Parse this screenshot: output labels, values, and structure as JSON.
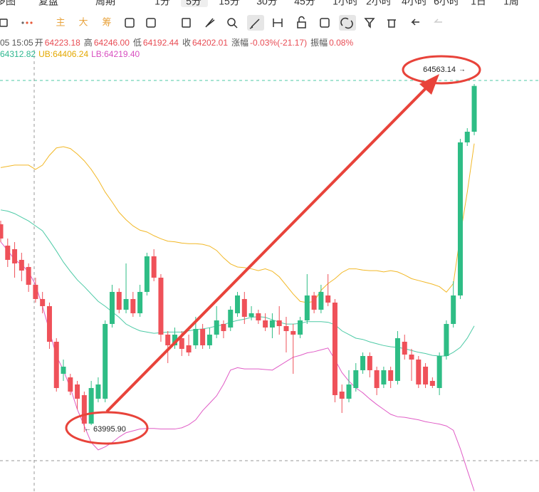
{
  "periods": [
    "多图",
    "复盘",
    "周期",
    "1分",
    "5分",
    "15分",
    "30分",
    "45分",
    "1小时",
    "2小时",
    "4小时",
    "6小时",
    "1日",
    "1周"
  ],
  "indicator_buttons": [
    "主",
    "大",
    "筹"
  ],
  "info": [
    "05 15:05",
    "开",
    "64223.18",
    "高",
    "64246.00",
    "低",
    "64192.44",
    "收",
    "64202.01",
    "涨幅",
    "-0.03%(-21.17)",
    "振幅",
    "0.08%"
  ],
  "indicator_values": [
    "64312.82",
    "UB:64406.24",
    "LB:64219.40"
  ],
  "chart_data": {
    "type": "candlestick",
    "categories": [
      null,
      null,
      null,
      null,
      null,
      null,
      null,
      null,
      null,
      null,
      null,
      null,
      null,
      null,
      null,
      null,
      null,
      null,
      null,
      null,
      null,
      null,
      null,
      null,
      null,
      null,
      null,
      null,
      null,
      null,
      null,
      null,
      null,
      null,
      null,
      null,
      null,
      null,
      null,
      null,
      null,
      null,
      null,
      null,
      null,
      null,
      null,
      null,
      null,
      null,
      null,
      null,
      null,
      null,
      null,
      null,
      null,
      null,
      null,
      null,
      null,
      null,
      null,
      null,
      null,
      null,
      null,
      null,
      null
    ],
    "open": [
      64334.6,
      64299.8,
      64294,
      64276.6,
      64265,
      64236,
      64212.8,
      64201.2,
      64143.2,
      64091,
      64085.2,
      64073.6,
      64056.2,
      64009.8,
      64050.4,
      64050.4,
      64172.2,
      64224.4,
      64195.4,
      64212.8,
      64189.6,
      64224.4,
      64282.4,
      64247.6,
      64154.8,
      64137.4,
      64149,
      64137.4,
      64137.4,
      64164.1,
      64137.4,
      64154.8,
      64172.2,
      64166.4,
      64189.6,
      64212.8,
      64183.8,
      64189.6,
      64178,
      64166.4,
      64178,
      64168.7,
      64160.6,
      64154.8,
      64178,
      64218.6,
      64195.4,
      64218.6,
      64207,
      64062,
      64050.4,
      64067.8,
      64096.8,
      64120,
      64096.8,
      64073.6,
      64096.8,
      64079.4,
      64143.2,
      64122.3,
      64114.2,
      64102.6,
      64079.4,
      64067.8,
      64120,
      64172.2,
      64218.6,
      64468,
      64485.4
    ],
    "high": [
      64340.4,
      64311.4,
      64305.6,
      64288.2,
      64270.8,
      64247.6,
      64224.4,
      64207,
      64149,
      64114.2,
      64091,
      64079.4,
      64062,
      64079.4,
      64085.2,
      64178,
      64236,
      64230.2,
      64270.8,
      64224.4,
      64236,
      64288.2,
      64294,
      64253.4,
      64160.6,
      64166.4,
      64160.6,
      64154.8,
      64183.8,
      64172.2,
      64166.4,
      64201.2,
      64178,
      64201.2,
      64224.4,
      64224.4,
      64201.2,
      64195.4,
      64189.6,
      64189.6,
      64201.2,
      64183.8,
      64172.2,
      64183.8,
      64253.4,
      64224.4,
      64236,
      64253.4,
      64212.8,
      64073.6,
      64096.8,
      64108.4,
      64125.8,
      64125.8,
      64102.6,
      64102.6,
      64102.6,
      64160.6,
      64154.8,
      64131.6,
      64120,
      64108.4,
      64085.2,
      64125.8,
      64178,
      64241.8,
      64473.8,
      64491.2,
      64563.14
    ],
    "low": [
      64305.6,
      64265,
      64247.6,
      64241.8,
      64224.4,
      64207,
      64189.6,
      64131.6,
      64062,
      64079.4,
      64056.2,
      64033,
      63995.9,
      64007.5,
      64044.6,
      64044.6,
      64166.4,
      64189.6,
      64189.6,
      64183.8,
      64183.8,
      64218.6,
      64241.8,
      64143.2,
      64108.4,
      64131.6,
      64120,
      64120,
      64131.6,
      64131.6,
      64131.6,
      64149,
      64149,
      64160.6,
      64183.8,
      64172.2,
      64178,
      64172.2,
      64160.6,
      64149,
      64154.8,
      64125.8,
      64091,
      64149,
      64172.2,
      64189.6,
      64189.6,
      64201.2,
      64044.6,
      64027.2,
      64044.6,
      64062,
      64091,
      64085.2,
      64056.2,
      64067.8,
      64067.8,
      64073.6,
      64114.2,
      64079.4,
      64067.8,
      64067.8,
      64067.8,
      64056.2,
      64114.2,
      64166.4,
      64212.8,
      64462.2,
      64479.6
    ],
    "close": [
      64311.4,
      64276.6,
      64270.8,
      64259.2,
      64236,
      64212.8,
      64201.2,
      64143.2,
      64067.8,
      64102.6,
      64062,
      64050.4,
      64009.8,
      64067.8,
      64073.6,
      64172.2,
      64224.4,
      64195.4,
      64212.8,
      64189.6,
      64224.4,
      64282.4,
      64247.6,
      64154.8,
      64137.4,
      64154.8,
      64131.6,
      64125.8,
      64164.1,
      64137.4,
      64154.8,
      64178,
      64160.6,
      64195.4,
      64218.6,
      64183.8,
      64189.6,
      64178,
      64166.4,
      64178,
      64168.7,
      64160.6,
      64154.8,
      64178,
      64218.6,
      64195.4,
      64224.4,
      64207,
      64056.2,
      64050.4,
      64073.6,
      64096.8,
      64120,
      64096.8,
      64067.8,
      64096.8,
      64079.4,
      64149,
      64122.3,
      64114.2,
      64073.6,
      64073.6,
      64071.3,
      64120,
      64172.2,
      64218.6,
      64468,
      64485.4,
      64560
    ],
    "up_color": "#2ebd85",
    "down_color": "#ef5159",
    "ylim": [
      63898.4,
      64618.8
    ],
    "series": [
      {
        "color": "#f2b827",
        "values": [
          64427,
          64429,
          64431,
          64431,
          64431,
          64424,
          64431,
          64447,
          64459,
          64461,
          64458,
          64449,
          64438,
          64424,
          64407,
          64387,
          64371,
          64354,
          64342,
          64332,
          64325,
          64322,
          64316,
          64311,
          64307,
          64306,
          64304,
          64303,
          64303,
          64302,
          64299,
          64292,
          64280,
          64270,
          64265,
          64264,
          64262,
          64259,
          64262,
          64258,
          64249,
          64235,
          64221,
          64209,
          64207,
          64209,
          64227,
          64238,
          64246,
          64256,
          64262,
          64262,
          64260,
          64259,
          64259,
          64257,
          64259,
          64257,
          64252,
          64246,
          64243,
          64240,
          64237,
          64233,
          64224,
          64238,
          64317,
          64387,
          64466
        ]
      },
      {
        "color": "#4dcaa6",
        "values": [
          64358,
          64356,
          64352,
          64346,
          64340,
          64332,
          64324,
          64308,
          64291,
          64273,
          64258,
          64244,
          64233,
          64221,
          64209,
          64201,
          64192,
          64183,
          64172,
          64166,
          64161,
          64159,
          64157,
          64158,
          64159,
          64159,
          64159,
          64161,
          64163,
          64164,
          64166,
          64169,
          64171,
          64175,
          64178,
          64180,
          64183,
          64184,
          64183,
          64179,
          64175,
          64172,
          64172,
          64173,
          64176,
          64176,
          64176,
          64175,
          64171,
          64161,
          64155,
          64149,
          64147,
          64143,
          64140,
          64137,
          64135,
          64134,
          64132,
          64129,
          64126,
          64124,
          64121,
          64120,
          64120,
          64126,
          64134,
          64149,
          64169
        ]
      },
      {
        "color": "#e05cc6",
        "values": [
          64306,
          64292,
          64277,
          64269,
          64257,
          64236,
          64201,
          64161,
          64120,
          64097,
          64068,
          64033,
          64006,
          63979,
          63967,
          63972,
          63979,
          63988,
          63995,
          63998,
          64001,
          64002,
          64002,
          64001,
          64001,
          64001,
          64003,
          64008,
          64016,
          64031,
          64043,
          64055,
          64074,
          64097,
          64101,
          64099,
          64099,
          64099,
          64098,
          64097,
          64104,
          64111,
          64118,
          64121,
          64125,
          64127,
          64130,
          64133,
          64114,
          64093,
          64079,
          64068,
          64060,
          64050,
          64041,
          64033,
          64025,
          64021,
          64020,
          64018,
          64016,
          64013,
          64011,
          64009,
          64006,
          63999,
          63969,
          63934,
          63900
        ]
      }
    ],
    "annotations": [
      {
        "value": 64563.14,
        "label": "64563.14"
      },
      {
        "value": 63995.9,
        "label": "63995.90"
      }
    ]
  }
}
